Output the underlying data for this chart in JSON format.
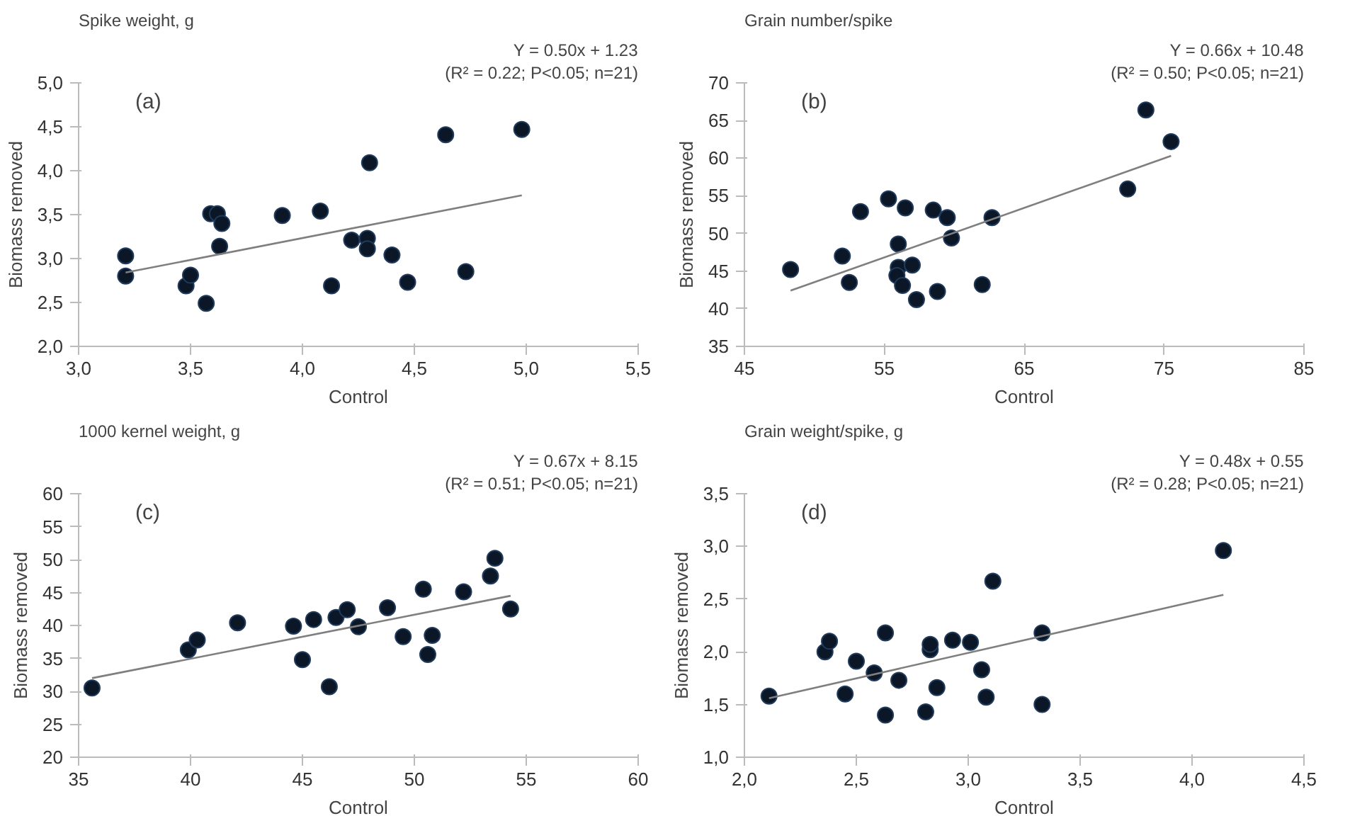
{
  "chart_data": [
    {
      "type": "scatter",
      "title": "Spike weight, g",
      "xlabel": "Control",
      "ylabel": "Biomass removed",
      "annotations": [
        "Y = 0.50x + 1.23",
        "(R² = 0.22; P<0.05; n=21)",
        "(a)"
      ],
      "grid": false,
      "xlim": [
        3.0,
        5.5
      ],
      "xticks": [
        {
          "value": 3.0,
          "label": "3,0"
        },
        {
          "value": 3.5,
          "label": "3,5"
        },
        {
          "value": 4.0,
          "label": "4,0"
        },
        {
          "value": 4.5,
          "label": "4,5"
        },
        {
          "value": 5.0,
          "label": "5,0"
        },
        {
          "value": 5.5,
          "label": "5,5"
        }
      ],
      "ylim": [
        2.0,
        5.0
      ],
      "yticks": [
        {
          "value": 2.0,
          "label": "2,0"
        },
        {
          "value": 2.5,
          "label": "2,5"
        },
        {
          "value": 3.0,
          "label": "3,0"
        },
        {
          "value": 3.5,
          "label": "3,5"
        },
        {
          "value": 4.0,
          "label": "4,0"
        },
        {
          "value": 4.5,
          "label": "4,5"
        },
        {
          "value": 5.0,
          "label": "5,0"
        }
      ],
      "series": [
        {
          "marker": "circle",
          "color": "#0b1626",
          "x": [
            3.21,
            3.21,
            3.48,
            3.5,
            3.57,
            3.59,
            3.62,
            3.64,
            3.63,
            3.91,
            4.08,
            4.13,
            4.22,
            4.29,
            4.29,
            4.3,
            4.4,
            4.47,
            4.64,
            4.73,
            4.98
          ],
          "values": [
            3.03,
            2.8,
            2.69,
            2.81,
            2.49,
            3.51,
            3.51,
            3.4,
            3.14,
            3.49,
            3.54,
            2.69,
            3.21,
            3.23,
            3.11,
            4.09,
            3.04,
            2.73,
            4.41,
            2.85,
            4.47
          ]
        },
        {
          "type": "line",
          "color": "#7f7f7f",
          "x": [
            3.21,
            4.98
          ],
          "values": [
            2.84,
            3.72
          ]
        }
      ]
    },
    {
      "type": "scatter",
      "title": "Grain number/spike",
      "xlabel": "Control",
      "ylabel": "Biomass removed",
      "annotations": [
        "Y = 0.66x + 10.48",
        "(R² = 0.50; P<0.05; n=21)",
        "(b)"
      ],
      "grid": false,
      "xlim": [
        45,
        85
      ],
      "xticks": [
        45,
        55,
        65,
        75,
        85
      ],
      "ylim": [
        35,
        70
      ],
      "yticks": [
        35,
        40,
        45,
        50,
        55,
        60,
        65,
        70
      ],
      "series": [
        {
          "marker": "circle",
          "color": "#0b1626",
          "x": [
            48.3,
            52.0,
            52.5,
            53.3,
            55.3,
            56.0,
            56.0,
            55.9,
            56.3,
            56.5,
            57.0,
            57.3,
            58.5,
            58.8,
            59.5,
            59.8,
            62.0,
            62.7,
            72.4,
            73.7,
            75.5
          ],
          "values": [
            45.2,
            47.0,
            43.5,
            52.9,
            54.6,
            48.6,
            45.5,
            44.4,
            43.1,
            53.4,
            45.8,
            41.2,
            53.1,
            42.3,
            52.1,
            49.4,
            43.2,
            52.1,
            55.9,
            66.4,
            62.2
          ]
        },
        {
          "type": "line",
          "color": "#7f7f7f",
          "x": [
            48.3,
            75.5
          ],
          "values": [
            42.4,
            60.3
          ]
        }
      ]
    },
    {
      "type": "scatter",
      "title": "1000 kernel weight, g",
      "xlabel": "Control",
      "ylabel": "Biomass removed",
      "annotations": [
        "Y = 0.67x + 8.15",
        "(R² = 0.51; P<0.05; n=21)",
        "(c)"
      ],
      "grid": false,
      "xlim": [
        35,
        60
      ],
      "xticks": [
        35,
        40,
        45,
        50,
        55,
        60
      ],
      "ylim": [
        20,
        60
      ],
      "yticks": [
        20,
        25,
        30,
        35,
        40,
        45,
        50,
        55,
        60
      ],
      "series": [
        {
          "marker": "circle",
          "color": "#0b1626",
          "x": [
            35.6,
            39.9,
            40.3,
            42.1,
            44.6,
            45.0,
            45.5,
            46.2,
            46.5,
            47.0,
            47.5,
            48.8,
            49.5,
            50.4,
            50.6,
            50.8,
            52.2,
            53.4,
            53.6,
            54.3
          ],
          "values": [
            30.5,
            36.3,
            37.8,
            40.4,
            39.9,
            34.8,
            40.9,
            30.7,
            41.2,
            42.4,
            39.8,
            42.7,
            38.3,
            45.5,
            35.6,
            38.5,
            45.1,
            47.5,
            50.2,
            42.5
          ]
        },
        {
          "type": "line",
          "color": "#7f7f7f",
          "x": [
            35.6,
            54.3
          ],
          "values": [
            32.0,
            44.5
          ]
        }
      ]
    },
    {
      "type": "scatter",
      "title": "Grain weight/spike, g",
      "xlabel": "Control",
      "ylabel": "Biomass removed",
      "annotations": [
        "Y = 0.48x + 0.55",
        "(R² = 0.28; P<0.05; n=21)",
        "(d)"
      ],
      "grid": false,
      "xlim": [
        2.0,
        4.5
      ],
      "xticks": [
        {
          "value": 2.0,
          "label": "2,0"
        },
        {
          "value": 2.5,
          "label": "2,5"
        },
        {
          "value": 3.0,
          "label": "3,0"
        },
        {
          "value": 3.5,
          "label": "3,5"
        },
        {
          "value": 4.0,
          "label": "4,0"
        },
        {
          "value": 4.5,
          "label": "4,5"
        }
      ],
      "ylim": [
        1.0,
        3.5
      ],
      "yticks": [
        {
          "value": 1.0,
          "label": "1,0"
        },
        {
          "value": 1.5,
          "label": "1,5"
        },
        {
          "value": 2.0,
          "label": "2,0"
        },
        {
          "value": 2.5,
          "label": "2,5"
        },
        {
          "value": 3.0,
          "label": "3,0"
        },
        {
          "value": 3.5,
          "label": "3,5"
        }
      ],
      "series": [
        {
          "marker": "circle",
          "color": "#0b1626",
          "x": [
            2.11,
            2.36,
            2.38,
            2.5,
            2.45,
            2.58,
            2.63,
            2.63,
            2.69,
            2.81,
            2.83,
            2.83,
            2.86,
            2.93,
            3.01,
            3.06,
            3.08,
            3.11,
            3.33,
            3.33,
            4.14
          ],
          "values": [
            1.58,
            2.0,
            2.1,
            1.91,
            1.6,
            1.8,
            2.18,
            1.4,
            1.73,
            1.43,
            2.02,
            2.07,
            1.66,
            2.11,
            2.09,
            1.83,
            1.57,
            2.67,
            1.5,
            2.18,
            2.96
          ]
        },
        {
          "type": "line",
          "color": "#7f7f7f",
          "x": [
            2.11,
            4.14
          ],
          "values": [
            1.56,
            2.54
          ]
        }
      ]
    }
  ]
}
